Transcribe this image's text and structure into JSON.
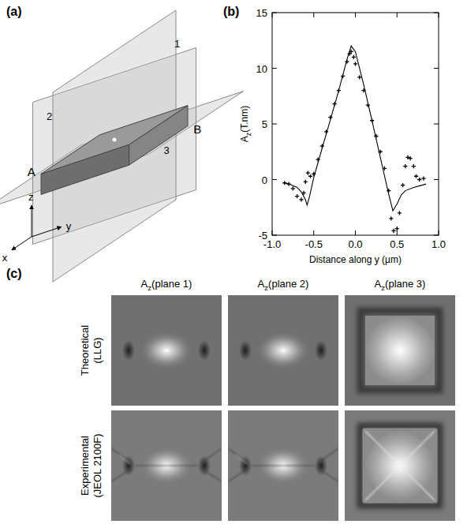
{
  "panel_a": {
    "label": "(a)",
    "plane_labels": [
      "1",
      "2",
      "3"
    ],
    "edge_labels": [
      "A",
      "B"
    ],
    "axis_labels": [
      "x",
      "y",
      "z"
    ]
  },
  "chart_data": {
    "type": "line",
    "panel_label": "(b)",
    "x_label": "Distance along y (µm)",
    "y_label": [
      "A",
      "z",
      "(T.nm)"
    ],
    "xlim": [
      -1,
      1
    ],
    "xticks": [
      {
        "value": -1,
        "label": "-1.0"
      },
      {
        "value": -0.5,
        "label": "-0.5"
      },
      {
        "value": 0,
        "label": "0.0"
      },
      {
        "value": 0.5,
        "label": "0.5"
      },
      {
        "value": 1,
        "label": "1.0"
      }
    ],
    "ylim": [
      -5,
      15
    ],
    "yticks": [
      -5,
      0,
      5,
      10,
      15
    ],
    "series": [
      {
        "color": "#000000",
        "marker": "none",
        "line_style": "solid",
        "x": [
          -0.85,
          -0.8,
          -0.7,
          -0.65,
          -0.6,
          -0.58,
          -0.55,
          -0.5,
          -0.4,
          -0.3,
          -0.2,
          -0.1,
          -0.05,
          0.0,
          0.1,
          0.2,
          0.3,
          0.4,
          0.45,
          0.5,
          0.55,
          0.6,
          0.7,
          0.8,
          0.85
        ],
        "values": [
          -0.3,
          -0.4,
          -0.7,
          -1.1,
          -1.8,
          -2.3,
          -1.5,
          0.2,
          2.8,
          5.4,
          8.0,
          10.8,
          12.0,
          11.5,
          8.5,
          5.3,
          2.0,
          -1.3,
          -2.8,
          -2.2,
          -1.4,
          -1.0,
          -0.7,
          -0.5,
          -0.4
        ]
      },
      {
        "color": "#000000",
        "marker": "cross",
        "line_style": "none",
        "x": [
          -0.85,
          -0.8,
          -0.75,
          -0.7,
          -0.65,
          -0.62,
          -0.6,
          -0.57,
          -0.54,
          -0.5,
          -0.45,
          -0.4,
          -0.35,
          -0.3,
          -0.25,
          -0.2,
          -0.15,
          -0.1,
          -0.07,
          -0.05,
          -0.02,
          0.0,
          0.05,
          0.1,
          0.15,
          0.2,
          0.25,
          0.3,
          0.35,
          0.4,
          0.43,
          0.46,
          0.5,
          0.53,
          0.57,
          0.6,
          0.63,
          0.66,
          0.7,
          0.73,
          0.77,
          0.82
        ],
        "values": [
          -0.3,
          -0.4,
          -0.8,
          -1.5,
          -1.8,
          -1.2,
          -0.2,
          0.6,
          0.3,
          0.5,
          1.8,
          3.0,
          4.3,
          5.6,
          6.8,
          8.0,
          9.3,
          10.6,
          11.3,
          11.5,
          11.0,
          10.4,
          9.2,
          8.0,
          6.7,
          5.3,
          3.9,
          2.5,
          1.0,
          -1.0,
          -3.5,
          -4.6,
          -4.4,
          -3.0,
          -0.5,
          1.2,
          2.0,
          1.9,
          1.2,
          0.3,
          0.0,
          0.1
        ]
      }
    ]
  },
  "panel_c": {
    "label": "(c)",
    "columns": [
      [
        "A",
        "z",
        "(plane 1)"
      ],
      [
        "A",
        "z",
        "(plane 2)"
      ],
      [
        "A",
        "z",
        "(plane 3)"
      ]
    ],
    "rows": [
      [
        "Theoretical",
        "(LLG)"
      ],
      [
        "Experimental",
        "(JEOL 2100F)"
      ]
    ]
  }
}
